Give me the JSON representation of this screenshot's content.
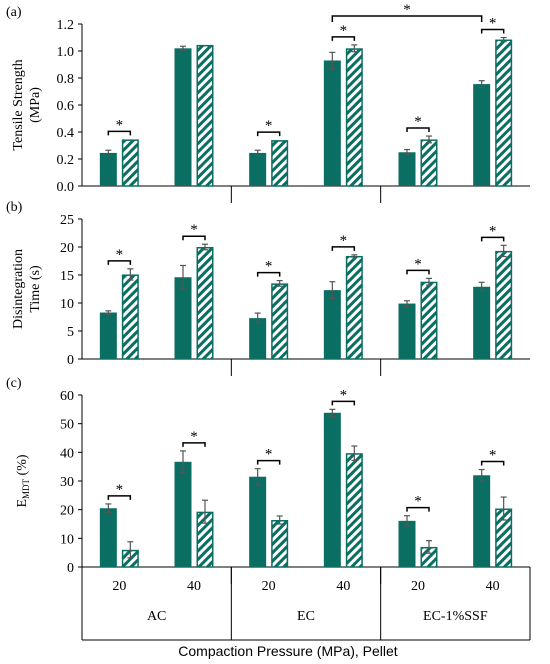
{
  "colors": {
    "solid": "#0b6e62",
    "hatch": "#0b6e62",
    "axis": "#000000",
    "error": "#555555"
  },
  "chart_data": [
    {
      "type": "bar",
      "panel_label": "(a)",
      "ylabel_lines": [
        "Tensile Strength",
        "(MPa)"
      ],
      "ylim": [
        0,
        1.2
      ],
      "yticks": [
        "0.0",
        "0.2",
        "0.4",
        "0.6",
        "0.8",
        "1.0",
        "1.2"
      ],
      "ytick_values": [
        0,
        0.2,
        0.4,
        0.6,
        0.8,
        1.0,
        1.2
      ],
      "series": [
        {
          "pattern": "solid",
          "values": [
            0.245,
            1.02,
            0.245,
            0.93,
            0.25,
            0.755
          ],
          "errors": [
            0.02,
            0.015,
            0.02,
            0.06,
            0.02,
            0.025
          ]
        },
        {
          "pattern": "hatched",
          "values": [
            0.345,
            1.045,
            0.34,
            1.02,
            0.345,
            1.085
          ],
          "errors": [
            0.0,
            0.0,
            0.0,
            0.025,
            0.025,
            0.015
          ]
        }
      ],
      "annotations": [
        {
          "text": "*",
          "type": "pair",
          "group": 0
        },
        {
          "text": "*",
          "type": "pair",
          "group": 2
        },
        {
          "text": "*",
          "type": "pair",
          "group": 3
        },
        {
          "text": "*",
          "type": "pair",
          "group": 4
        },
        {
          "text": "*",
          "type": "pair",
          "group": 5
        },
        {
          "text": "*",
          "type": "span",
          "from_group": 3,
          "to_group": 5
        }
      ]
    },
    {
      "type": "bar",
      "panel_label": "(b)",
      "ylabel_lines": [
        "Disintegration",
        "Time (s)"
      ],
      "ylim": [
        0,
        25
      ],
      "yticks": [
        "0",
        "5",
        "10",
        "15",
        "20",
        "25"
      ],
      "ytick_values": [
        0,
        5,
        10,
        15,
        20,
        25
      ],
      "series": [
        {
          "pattern": "solid",
          "values": [
            8.3,
            14.6,
            7.3,
            12.3,
            9.9,
            12.9
          ],
          "errors": [
            0.3,
            2.1,
            0.9,
            1.5,
            0.5,
            0.8
          ]
        },
        {
          "pattern": "hatched",
          "values": [
            15.1,
            20.0,
            13.5,
            18.4,
            13.8,
            19.3
          ],
          "errors": [
            1.0,
            0.5,
            0.5,
            0.2,
            0.6,
            1.0
          ]
        }
      ],
      "annotations": [
        {
          "text": "*",
          "type": "pair",
          "group": 0
        },
        {
          "text": "*",
          "type": "pair",
          "group": 1
        },
        {
          "text": "*",
          "type": "pair",
          "group": 2
        },
        {
          "text": "*",
          "type": "pair",
          "group": 3
        },
        {
          "text": "*",
          "type": "pair",
          "group": 4
        },
        {
          "text": "*",
          "type": "pair",
          "group": 5
        }
      ]
    },
    {
      "type": "bar",
      "panel_label": "(c)",
      "ylabel_main": "E",
      "ylabel_sub": "MDT",
      "ylabel_unit": " (%)",
      "ylim": [
        0,
        60
      ],
      "yticks": [
        "0",
        "10",
        "20",
        "30",
        "40",
        "50",
        "60"
      ],
      "ytick_values": [
        0,
        10,
        20,
        30,
        40,
        50,
        60
      ],
      "series": [
        {
          "pattern": "solid",
          "values": [
            20.5,
            36.7,
            31.5,
            53.8,
            16.1,
            32.0
          ],
          "errors": [
            1.5,
            3.8,
            2.8,
            1.2,
            1.8,
            2.0
          ]
        },
        {
          "pattern": "hatched",
          "values": [
            6.0,
            19.3,
            16.4,
            39.7,
            7.0,
            20.4
          ],
          "errors": [
            2.8,
            4.0,
            1.4,
            2.5,
            2.2,
            4.0
          ]
        }
      ],
      "annotations": [
        {
          "text": "*",
          "type": "pair",
          "group": 0
        },
        {
          "text": "*",
          "type": "pair",
          "group": 1
        },
        {
          "text": "*",
          "type": "pair",
          "group": 2
        },
        {
          "text": "*",
          "type": "pair",
          "group": 3
        },
        {
          "text": "*",
          "type": "pair",
          "group": 4
        },
        {
          "text": "*",
          "type": "pair",
          "group": 5
        }
      ]
    }
  ],
  "x_axis": {
    "pressure_labels": [
      "20",
      "40",
      "20",
      "40",
      "20",
      "40"
    ],
    "pellet_labels": [
      "AC",
      "EC",
      "EC-1%SSF"
    ],
    "title": "Compaction Pressure (MPa), Pellet"
  }
}
